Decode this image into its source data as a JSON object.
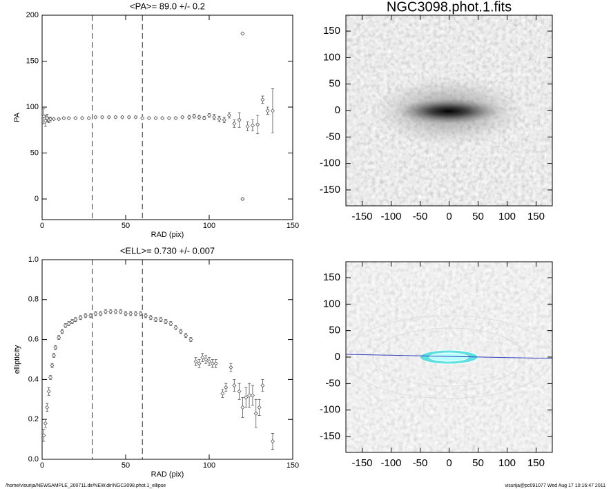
{
  "chart_data": [
    {
      "type": "scatter",
      "title": "<PA>=  89.0 +/-   0.2",
      "xlabel": "RAD (pix)",
      "ylabel": "PA",
      "xlim": [
        0,
        150
      ],
      "ylim": [
        -22.5,
        200
      ],
      "xticks": [
        0,
        50,
        100,
        150
      ],
      "yticks": [
        0,
        50,
        100,
        150,
        200
      ],
      "vlines": [
        30,
        60
      ],
      "color": "#555555",
      "x": [
        1,
        2,
        3,
        4,
        5,
        7,
        10,
        13,
        16,
        20,
        24,
        28,
        32,
        36,
        40,
        44,
        48,
        52,
        56,
        60,
        64,
        68,
        72,
        76,
        80,
        84,
        88,
        91,
        94,
        97,
        100,
        103,
        106,
        109,
        112,
        115,
        118,
        120,
        120,
        123,
        126,
        129,
        132,
        135,
        138
      ],
      "values": [
        90,
        85,
        88,
        86,
        87,
        87,
        87,
        88,
        88,
        88,
        88,
        88,
        89,
        89,
        89,
        89,
        89,
        89,
        89,
        88,
        88,
        88,
        88,
        88,
        88,
        89,
        89,
        90,
        89,
        88,
        91,
        89,
        87,
        86,
        91,
        82,
        86,
        180,
        0,
        79,
        80,
        81,
        108,
        96,
        96
      ],
      "errors": [
        8,
        6,
        4,
        3,
        2,
        1,
        1,
        1,
        1,
        1,
        1,
        1,
        1,
        1,
        1,
        1,
        1,
        1,
        1,
        1,
        1,
        1,
        1,
        1,
        1,
        1,
        2,
        2,
        2,
        2,
        2,
        3,
        3,
        3,
        3,
        4,
        8,
        1,
        1,
        5,
        6,
        10,
        4,
        4,
        24
      ]
    },
    {
      "type": "image",
      "title": "NGC3098.phot.1.fits",
      "xlim": [
        -178,
        178
      ],
      "ylim": [
        -180,
        180
      ],
      "xticks": [
        -150,
        -100,
        -50,
        0,
        50,
        100,
        150
      ],
      "yticks": [
        -150,
        -100,
        -50,
        0,
        50,
        100,
        150
      ]
    },
    {
      "type": "scatter",
      "title": "<ELL>= 0.730 +/-  0.007",
      "xlabel": "RAD (pix)",
      "ylabel": "ellipticity",
      "xlim": [
        0,
        150
      ],
      "ylim": [
        0,
        1
      ],
      "xticks": [
        0,
        50,
        100,
        150
      ],
      "yticks": [
        {
          "value": 0,
          "label": "0.0"
        },
        0.2,
        0.4,
        0.6,
        0.8,
        {
          "value": 1,
          "label": "1.0"
        }
      ],
      "vlines": [
        30,
        60
      ],
      "color": "#555555",
      "x": [
        1,
        2,
        3,
        4,
        5,
        6,
        7,
        8,
        10,
        12,
        14,
        16,
        18,
        20,
        23,
        26,
        29,
        32,
        35,
        38,
        41,
        44,
        47,
        50,
        53,
        56,
        59,
        62,
        65,
        68,
        71,
        74,
        77,
        80,
        83,
        86,
        89,
        92,
        94,
        96,
        98,
        100,
        102,
        104,
        108,
        110,
        113,
        115,
        118,
        120,
        122,
        124,
        126,
        128,
        130,
        132,
        138
      ],
      "values": [
        0.12,
        0.18,
        0.26,
        0.34,
        0.41,
        0.47,
        0.52,
        0.56,
        0.61,
        0.64,
        0.67,
        0.68,
        0.69,
        0.7,
        0.71,
        0.72,
        0.72,
        0.73,
        0.73,
        0.74,
        0.74,
        0.74,
        0.74,
        0.73,
        0.73,
        0.73,
        0.73,
        0.72,
        0.71,
        0.7,
        0.7,
        0.69,
        0.68,
        0.66,
        0.64,
        0.62,
        0.6,
        0.49,
        0.48,
        0.51,
        0.5,
        0.49,
        0.48,
        0.48,
        0.33,
        0.36,
        0.46,
        0.37,
        0.34,
        0.26,
        0.31,
        0.32,
        0.32,
        0.23,
        0.26,
        0.37,
        0.09
      ],
      "errors": [
        0.03,
        0.02,
        0.02,
        0.02,
        0.01,
        0.01,
        0.01,
        0.01,
        0.01,
        0.01,
        0.01,
        0.01,
        0.01,
        0.01,
        0.01,
        0.01,
        0.01,
        0.01,
        0.01,
        0.01,
        0.01,
        0.01,
        0.01,
        0.01,
        0.01,
        0.01,
        0.01,
        0.01,
        0.01,
        0.01,
        0.01,
        0.01,
        0.01,
        0.01,
        0.01,
        0.01,
        0.01,
        0.02,
        0.02,
        0.02,
        0.02,
        0.02,
        0.02,
        0.02,
        0.02,
        0.02,
        0.02,
        0.03,
        0.04,
        0.05,
        0.05,
        0.06,
        0.05,
        0.07,
        0.04,
        0.03,
        0.04
      ]
    },
    {
      "type": "image",
      "xlim": [
        -178,
        178
      ],
      "ylim": [
        -180,
        180
      ],
      "xticks": [
        -150,
        -100,
        -50,
        0,
        50,
        100,
        150
      ],
      "yticks": [
        -150,
        -100,
        -50,
        0,
        50,
        100,
        150
      ]
    }
  ],
  "footer": {
    "path": "/home/visurija/NEWSAMPLE_200711.dir/NEW.dir/NGC3098.phot.1_ellipse",
    "stamp": "visurija@pc091077  Wed Aug 17 10:16:47 2011"
  }
}
